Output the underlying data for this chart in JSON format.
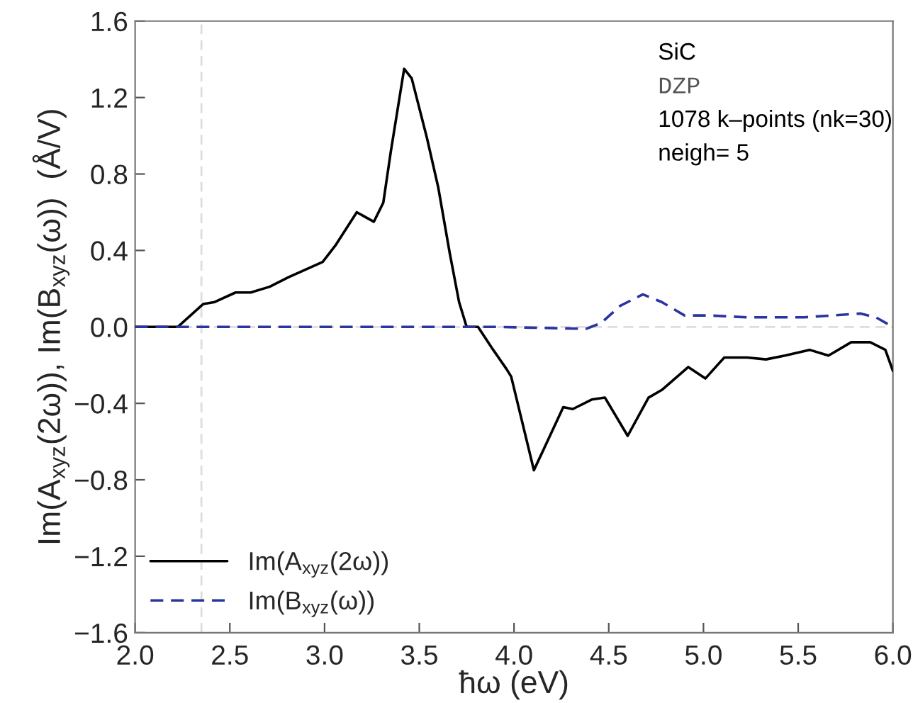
{
  "chart_data": {
    "type": "line",
    "xlabel": "ħω (eV)",
    "ylabel": "Im(A$_{xyz}$(2ω)), Im(B$_{xyz}$(ω))  (Å/V)",
    "annotations": [
      "SiC",
      "DZP",
      "1078 k–points (nk=30)",
      "neigh= 5"
    ],
    "series": [
      {
        "name": "Im(A$_{xyz}$(2ω))",
        "color": "#000000",
        "line_style": "solid",
        "x": [
          2.0,
          2.225,
          2.36,
          2.42,
          2.53,
          2.61,
          2.71,
          2.81,
          2.99,
          3.06,
          3.17,
          3.26,
          3.31,
          3.35,
          3.42,
          3.46,
          3.54,
          3.6,
          3.66,
          3.71,
          3.75,
          3.81,
          3.89,
          3.96,
          3.985,
          4.105,
          4.26,
          4.31,
          4.41,
          4.48,
          4.6,
          4.71,
          4.78,
          4.92,
          5.01,
          5.11,
          5.23,
          5.33,
          5.43,
          5.56,
          5.66,
          5.78,
          5.88,
          5.96,
          6.0
        ],
        "values": [
          0.0,
          0.0,
          0.12,
          0.13,
          0.18,
          0.18,
          0.21,
          0.26,
          0.34,
          0.43,
          0.6,
          0.55,
          0.65,
          0.92,
          1.35,
          1.3,
          0.99,
          0.73,
          0.39,
          0.13,
          0.0,
          0.0,
          -0.12,
          -0.22,
          -0.26,
          -0.75,
          -0.42,
          -0.43,
          -0.38,
          -0.37,
          -0.57,
          -0.37,
          -0.33,
          -0.21,
          -0.27,
          -0.16,
          -0.16,
          -0.17,
          -0.15,
          -0.12,
          -0.15,
          -0.08,
          -0.08,
          -0.12,
          -0.23
        ]
      },
      {
        "name": "Im(B$_{xyz}$(ω))",
        "color": "#2b35a0",
        "line_style": "dashed",
        "x": [
          2.0,
          3.0,
          3.9,
          4.38,
          4.46,
          4.56,
          4.68,
          4.78,
          4.9,
          5.03,
          5.23,
          5.53,
          5.83,
          5.91,
          6.0
        ],
        "values": [
          0.0,
          0.0,
          0.0,
          -0.01,
          0.02,
          0.11,
          0.17,
          0.13,
          0.06,
          0.06,
          0.05,
          0.05,
          0.07,
          0.05,
          0.0
        ]
      }
    ],
    "ref_lines": [
      {
        "axis": "x",
        "value": 2.35,
        "color": "#dddddd",
        "line_style": "dashed"
      },
      {
        "axis": "y",
        "value": 0.0,
        "color": "#dddddd",
        "line_style": "dashed"
      }
    ],
    "xlim": [
      2.0,
      6.0
    ],
    "ylim": [
      -1.6,
      1.6
    ],
    "xticks": [
      {
        "value": 2.0,
        "label": "2.0"
      },
      2.5,
      {
        "value": 3.0,
        "label": "3.0"
      },
      3.5,
      {
        "value": 4.0,
        "label": "4.0"
      },
      4.5,
      {
        "value": 5.0,
        "label": "5.0"
      },
      5.5,
      {
        "value": 6.0,
        "label": "6.0"
      }
    ],
    "yticks": [
      {
        "value": -1.6,
        "label": "−1.6"
      },
      {
        "value": -1.2,
        "label": "−1.2"
      },
      {
        "value": -0.8,
        "label": "−0.8"
      },
      {
        "value": -0.4,
        "label": "−0.4"
      },
      {
        "value": 0.0,
        "label": "0.0"
      },
      0.4,
      0.8,
      1.2,
      1.6
    ],
    "grid": false,
    "legend": "bottom left"
  }
}
